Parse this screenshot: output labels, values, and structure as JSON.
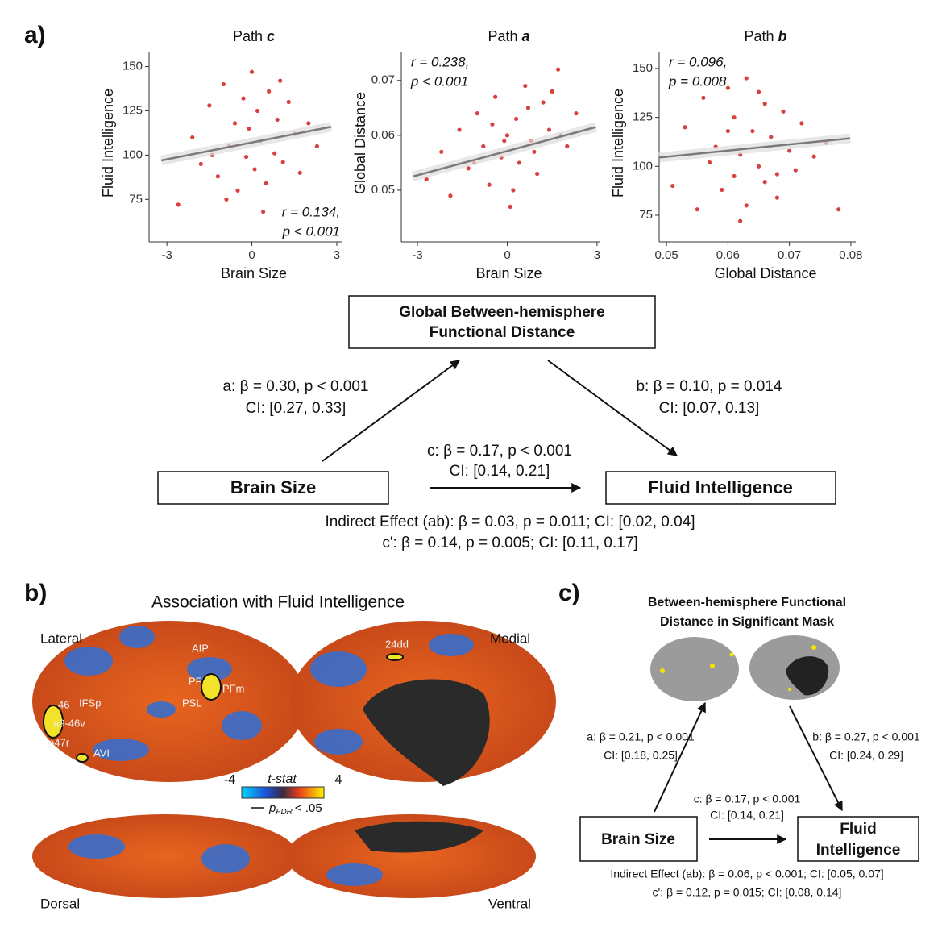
{
  "panel_labels": [
    "a)",
    "b)",
    "c)"
  ],
  "chart_data": [
    {
      "type": "scatter",
      "title": "Path",
      "title_var": "c",
      "x_label": "Brain Size",
      "y_label": "Fluid Intelligence",
      "xlim": [
        -3.63,
        3.2
      ],
      "ylim": [
        51,
        158
      ],
      "xticks": [
        -3,
        0,
        3
      ],
      "yticks": [
        75,
        100,
        125,
        150
      ],
      "color": "#d9413f",
      "trend_color": "#7a7a7a",
      "x": [
        -2.6,
        -2.1,
        -1.8,
        -1.5,
        -1.2,
        -1.0,
        -0.8,
        -0.6,
        -0.5,
        -0.3,
        -0.2,
        -0.1,
        0,
        0.1,
        0.2,
        0.3,
        0.5,
        0.6,
        0.8,
        0.9,
        1.1,
        1.3,
        1.5,
        1.7,
        2.0,
        2.3,
        -0.9,
        0.4,
        1.0,
        -1.4
      ],
      "values": [
        72,
        110,
        95,
        128,
        88,
        140,
        105,
        118,
        80,
        132,
        99,
        115,
        147,
        92,
        125,
        108,
        84,
        136,
        101,
        120,
        96,
        130,
        112,
        90,
        118,
        105,
        75,
        68,
        142,
        100
      ],
      "trend": {
        "x": [
          -3.2,
          2.8
        ],
        "values": [
          97,
          116
        ]
      },
      "annotation": [
        "r = 0.134,",
        "p < 0.001"
      ]
    },
    {
      "type": "scatter",
      "title": "Path",
      "title_var": "a",
      "x_label": "Brain Size",
      "y_label": "Global Distance",
      "xlim": [
        -3.54,
        3.11
      ],
      "ylim": [
        0.0406,
        0.0751
      ],
      "xticks": [
        -3,
        0,
        3
      ],
      "yticks": [
        0.05,
        0.06,
        0.07
      ],
      "color": "#d9413f",
      "trend_color": "#7a7a7a",
      "x": [
        -2.7,
        -2.2,
        -1.9,
        -1.6,
        -1.3,
        -1.0,
        -0.8,
        -0.6,
        -0.4,
        -0.2,
        0,
        0.1,
        0.3,
        0.4,
        0.6,
        0.8,
        1.0,
        1.2,
        1.4,
        1.7,
        2.0,
        2.3,
        -0.5,
        0.2,
        0.9,
        -1.1,
        1.5,
        -0.1,
        0.7,
        1.8
      ],
      "values": [
        0.052,
        0.057,
        0.049,
        0.061,
        0.054,
        0.064,
        0.058,
        0.051,
        0.067,
        0.056,
        0.06,
        0.047,
        0.063,
        0.055,
        0.069,
        0.059,
        0.053,
        0.066,
        0.061,
        0.072,
        0.058,
        0.064,
        0.062,
        0.05,
        0.057,
        0.055,
        0.068,
        0.059,
        0.065,
        0.06
      ],
      "trend": {
        "x": [
          -3.16,
          2.96
        ],
        "values": [
          0.0525,
          0.0615
        ]
      },
      "annotation": [
        "r = 0.238,",
        "p < 0.001"
      ]
    },
    {
      "type": "scatter",
      "title": "Path",
      "title_var": "b",
      "x_label": "Global Distance",
      "y_label": "Fluid Intelligence",
      "xlim": [
        0.0488,
        0.0808
      ],
      "ylim": [
        61.4,
        158.2
      ],
      "xticks": [
        0.05,
        0.06,
        0.07,
        0.08
      ],
      "yticks": [
        75,
        100,
        125,
        150
      ],
      "color": "#d9413f",
      "trend_color": "#7a7a7a",
      "x": [
        0.051,
        0.053,
        0.055,
        0.056,
        0.057,
        0.058,
        0.059,
        0.06,
        0.061,
        0.061,
        0.062,
        0.063,
        0.063,
        0.064,
        0.065,
        0.066,
        0.066,
        0.067,
        0.068,
        0.069,
        0.07,
        0.071,
        0.072,
        0.074,
        0.076,
        0.078,
        0.062,
        0.065,
        0.06,
        0.068
      ],
      "values": [
        90,
        120,
        78,
        135,
        102,
        110,
        88,
        140,
        95,
        125,
        106,
        145,
        80,
        118,
        100,
        132,
        92,
        115,
        84,
        128,
        108,
        98,
        122,
        105,
        112,
        78,
        72,
        138,
        118,
        96
      ],
      "trend": {
        "x": [
          0.0488,
          0.0799
        ],
        "values": [
          104.5,
          114.3
        ]
      },
      "annotation": [
        "r = 0.096,",
        "p = 0.008"
      ]
    }
  ],
  "mediation_a": {
    "mediator": [
      "Global Between-hemisphere",
      "Functional Distance"
    ],
    "predictor": "Brain Size",
    "outcome": "Fluid Intelligence",
    "path_a": [
      "a: β = 0.30, p < 0.001",
      "CI: [0.27, 0.33]"
    ],
    "path_b": [
      "b: β = 0.10, p = 0.014",
      "CI: [0.07, 0.13]"
    ],
    "path_c": [
      "c: β = 0.17, p < 0.001",
      "CI: [0.14, 0.21]"
    ],
    "indirect": "Indirect Effect (ab): β = 0.03, p = 0.011; CI: [0.02, 0.04]",
    "c_prime": "c': β = 0.14, p = 0.005; CI: [0.11, 0.17]"
  },
  "brain_map": {
    "title": "Association with Fluid Intelligence",
    "views": [
      "Lateral",
      "Medial",
      "Dorsal",
      "Ventral"
    ],
    "regions": [
      "AIP",
      "PF",
      "PFm",
      "PSL",
      "46",
      "IFSp",
      "a9-46v",
      "p47r",
      "AVI",
      "24dd"
    ],
    "colorbar": {
      "min_label": "-4",
      "label": "t-stat",
      "max_label": "4"
    },
    "legend": {
      "symbol": "p",
      "subscript": "FDR",
      "text": "< .05"
    }
  },
  "mediation_c": {
    "title": [
      "Between-hemisphere Functional",
      "Distance in Significant Mask"
    ],
    "predictor": "Brain Size",
    "outcome": [
      "Fluid",
      "Intelligence"
    ],
    "path_a": [
      "a: β = 0.21, p < 0.001",
      "CI: [0.18, 0.25]"
    ],
    "path_b": [
      "b: β = 0.27, p < 0.001",
      "CI: [0.24, 0.29]"
    ],
    "path_c": [
      "c: β = 0.17, p < 0.001",
      "CI: [0.14, 0.21]"
    ],
    "indirect": "Indirect Effect (ab): β = 0.06, p < 0.001; CI: [0.05, 0.07]",
    "c_prime": "c': β = 0.12, p = 0.015; CI: [0.08, 0.14]"
  }
}
